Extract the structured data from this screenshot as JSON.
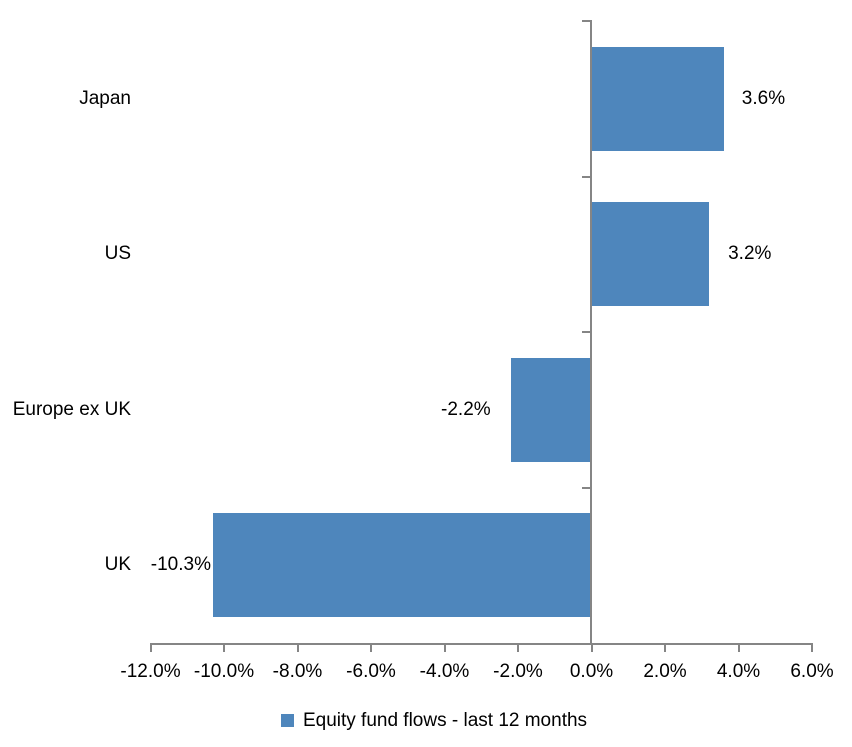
{
  "chart_data": {
    "type": "bar",
    "orientation": "horizontal",
    "title": "",
    "categories": [
      "Japan",
      "US",
      "Europe ex UK",
      "UK"
    ],
    "values": [
      3.6,
      3.2,
      -2.2,
      -10.3
    ],
    "value_labels": [
      "3.6%",
      "3.2%",
      "-2.2%",
      "-10.3%"
    ],
    "xlim": [
      -12,
      6
    ],
    "x_ticks": [
      -12,
      -10,
      -8,
      -6,
      -4,
      -2,
      0,
      2,
      4,
      6
    ],
    "x_tick_labels": [
      "-12.0%",
      "-10.0%",
      "-8.0%",
      "-6.0%",
      "-4.0%",
      "-2.0%",
      "0.0%",
      "2.0%",
      "4.0%",
      "6.0%"
    ],
    "grid": false,
    "legend_position": "bottom",
    "legend": [
      {
        "label": "Equity fund flows - last 12 months",
        "color": "#4E86BC"
      }
    ],
    "bar_color": "#4E86BC",
    "axis_color": "#858585",
    "text_color": "#000000"
  }
}
